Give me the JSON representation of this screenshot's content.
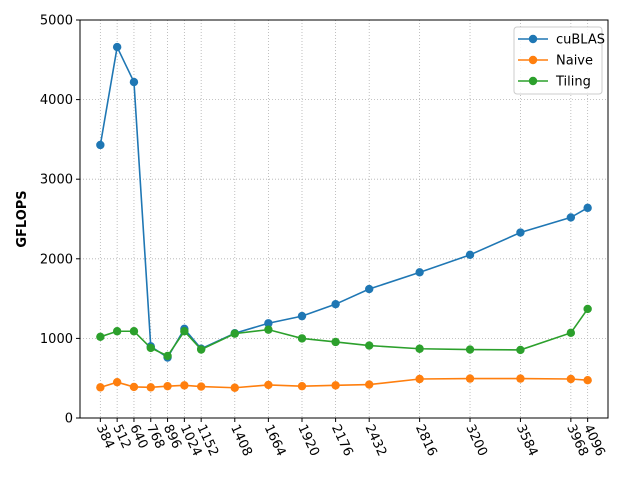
{
  "chart_data": {
    "type": "line",
    "ylabel": "GFLOPS",
    "ylim": [
      0,
      5000
    ],
    "yticks": [
      "0",
      "1000",
      "2000",
      "3000",
      "4000",
      "5000"
    ],
    "x": [
      384,
      512,
      640,
      768,
      896,
      1024,
      1152,
      1408,
      1664,
      1920,
      2176,
      2432,
      2816,
      3200,
      3584,
      3968,
      4096
    ],
    "xticks": [
      "384",
      "512",
      "640",
      "768",
      "896",
      "1024",
      "1152",
      "1408",
      "1664",
      "1920",
      "2176",
      "2432",
      "2816",
      "3200",
      "3584",
      "3968",
      "4096"
    ],
    "grid": true,
    "legend_position": "top-right",
    "series": [
      {
        "name": "cuBLAS",
        "color": "#1f77b4",
        "values": [
          3430,
          4660,
          4220,
          900,
          760,
          1120,
          870,
          1065,
          1190,
          1280,
          1430,
          1620,
          1830,
          2050,
          2330,
          2520,
          2640
        ]
      },
      {
        "name": "Naive",
        "color": "#ff7f0e",
        "values": [
          385,
          450,
          390,
          385,
          400,
          410,
          395,
          380,
          415,
          400,
          410,
          420,
          490,
          495,
          495,
          490,
          475
        ]
      },
      {
        "name": "Tiling",
        "color": "#2ca02c",
        "values": [
          1020,
          1090,
          1090,
          880,
          780,
          1090,
          860,
          1060,
          1110,
          1000,
          955,
          910,
          870,
          860,
          855,
          1070,
          1370
        ]
      }
    ]
  }
}
